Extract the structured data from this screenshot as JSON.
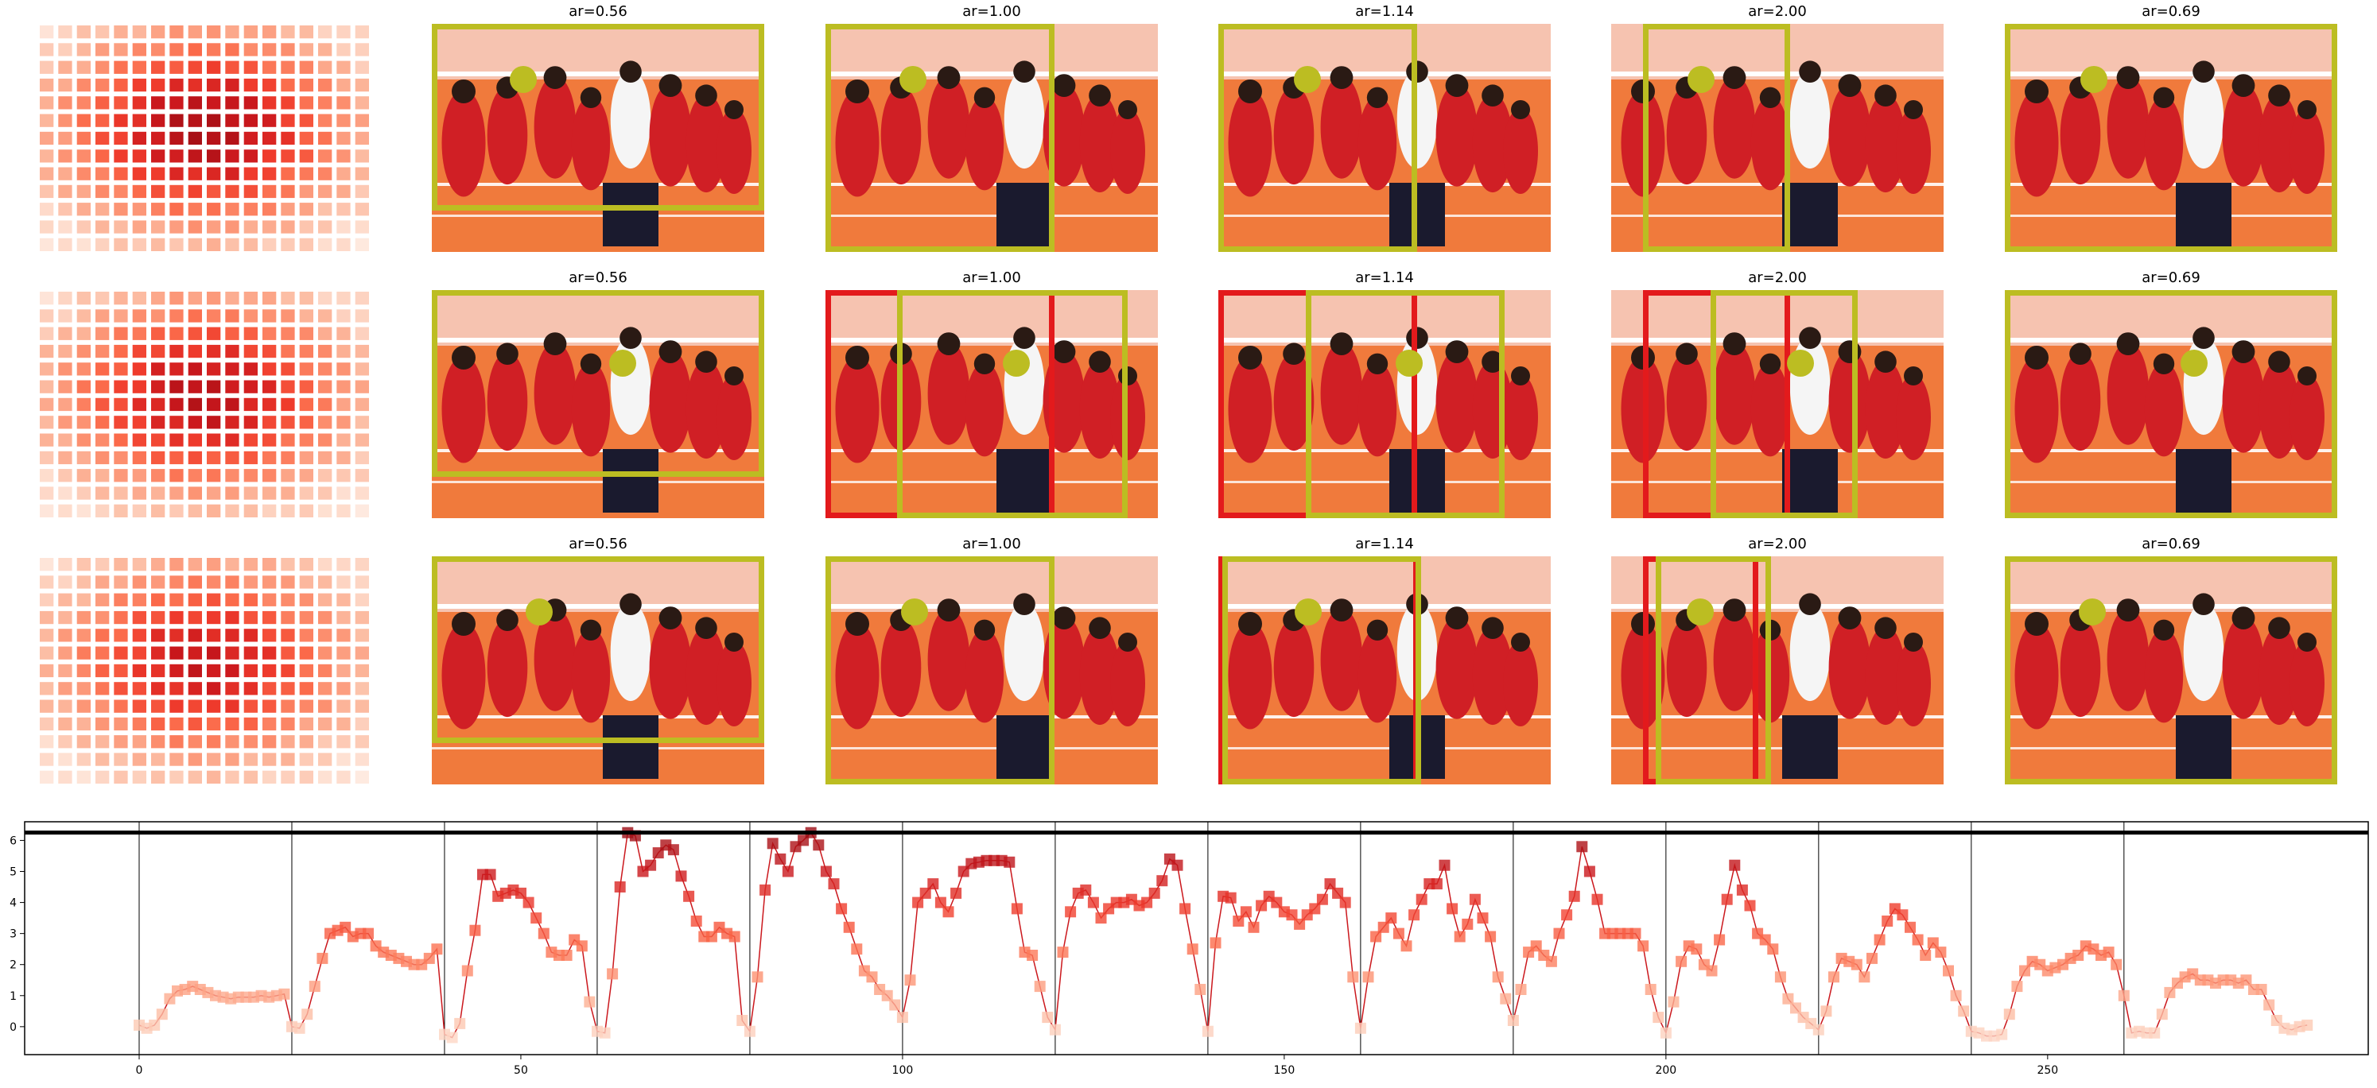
{
  "colors": {
    "box_yellow": "#bcbd22",
    "box_red": "#e31a1c",
    "heat_light": "#fee5d9",
    "heat_dark": "#a50f15",
    "line": "#cb181d"
  },
  "panels": {
    "rows": [
      {
        "cells": [
          {
            "title": "ar=0.56",
            "yellow_box": true,
            "red_box": false
          },
          {
            "title": "ar=1.00",
            "yellow_box": true,
            "red_box": false
          },
          {
            "title": "ar=1.14",
            "yellow_box": true,
            "red_box": false
          },
          {
            "title": "ar=2.00",
            "yellow_box": true,
            "red_box": false
          },
          {
            "title": "ar=0.69",
            "yellow_box": true,
            "red_box": false
          }
        ]
      },
      {
        "cells": [
          {
            "title": "ar=0.56",
            "yellow_box": true,
            "red_box": false
          },
          {
            "title": "ar=1.00",
            "yellow_box": true,
            "red_box": true
          },
          {
            "title": "ar=1.14",
            "yellow_box": true,
            "red_box": true
          },
          {
            "title": "ar=2.00",
            "yellow_box": true,
            "red_box": true
          },
          {
            "title": "ar=0.69",
            "yellow_box": true,
            "red_box": false
          }
        ]
      },
      {
        "cells": [
          {
            "title": "ar=0.56",
            "yellow_box": true,
            "red_box": false
          },
          {
            "title": "ar=1.00",
            "yellow_box": true,
            "red_box": false
          },
          {
            "title": "ar=1.14",
            "yellow_box": true,
            "red_box": true
          },
          {
            "title": "ar=2.00",
            "yellow_box": true,
            "red_box": true
          },
          {
            "title": "ar=0.69",
            "yellow_box": true,
            "red_box": false
          }
        ]
      }
    ]
  },
  "chart_data": {
    "type": "line",
    "title": "",
    "xlabel": "",
    "ylabel": "",
    "xlim": [
      -15,
      292
    ],
    "ylim": [
      -0.9,
      6.6
    ],
    "xticks": [
      0,
      50,
      100,
      150,
      200,
      250
    ],
    "yticks": [
      0,
      1,
      2,
      3,
      4,
      5,
      6
    ],
    "hline": 6.25,
    "vlines": [
      0,
      20,
      40,
      60,
      80,
      100,
      120,
      140,
      160,
      180,
      200,
      220,
      240,
      260
    ],
    "grid": false,
    "x_start": 0,
    "values": [
      0.05,
      -0.05,
      0.05,
      0.4,
      0.9,
      1.15,
      1.2,
      1.3,
      1.2,
      1.1,
      1.0,
      0.95,
      0.9,
      0.95,
      0.95,
      0.95,
      1.0,
      0.95,
      1.0,
      1.05,
      0.0,
      -0.05,
      0.4,
      1.3,
      2.2,
      3.0,
      3.1,
      3.2,
      2.9,
      3.0,
      3.0,
      2.6,
      2.4,
      2.3,
      2.2,
      2.1,
      2.0,
      2.0,
      2.2,
      2.5,
      -0.25,
      -0.35,
      0.1,
      1.8,
      3.1,
      4.9,
      4.9,
      4.2,
      4.3,
      4.4,
      4.3,
      4.0,
      3.5,
      3.0,
      2.4,
      2.3,
      2.3,
      2.8,
      2.6,
      0.8,
      -0.15,
      -0.2,
      1.7,
      4.5,
      6.25,
      6.15,
      5.0,
      5.2,
      5.6,
      5.85,
      5.7,
      4.85,
      4.2,
      3.4,
      2.9,
      2.9,
      3.2,
      3.0,
      2.9,
      0.2,
      -0.15,
      1.6,
      4.4,
      5.9,
      5.4,
      5.0,
      5.8,
      6.0,
      6.25,
      5.85,
      5.0,
      4.6,
      3.8,
      3.2,
      2.5,
      1.8,
      1.6,
      1.2,
      1.0,
      0.7,
      0.3,
      1.5,
      4.0,
      4.3,
      4.6,
      4.0,
      3.7,
      4.3,
      5.0,
      5.25,
      5.3,
      5.35,
      5.35,
      5.35,
      5.3,
      3.8,
      2.4,
      2.3,
      1.3,
      0.3,
      -0.1,
      2.4,
      3.7,
      4.3,
      4.4,
      4.0,
      3.5,
      3.8,
      4.0,
      4.0,
      4.1,
      3.9,
      4.0,
      4.3,
      4.7,
      5.4,
      5.2,
      3.8,
      2.5,
      1.2,
      -0.15,
      2.7,
      4.2,
      4.15,
      3.4,
      3.7,
      3.2,
      3.9,
      4.2,
      4.0,
      3.7,
      3.6,
      3.3,
      3.6,
      3.8,
      4.1,
      4.6,
      4.3,
      4.0,
      1.6,
      -0.05,
      1.6,
      2.9,
      3.2,
      3.5,
      3.0,
      2.6,
      3.6,
      4.1,
      4.6,
      4.6,
      5.2,
      3.8,
      2.9,
      3.3,
      4.1,
      3.5,
      2.9,
      1.6,
      0.9,
      0.2,
      1.2,
      2.4,
      2.6,
      2.3,
      2.1,
      3.0,
      3.6,
      4.2,
      5.8,
      5.0,
      4.1,
      3.0,
      3.0,
      3.0,
      3.0,
      3.0,
      2.6,
      1.2,
      0.3,
      -0.2,
      0.8,
      2.1,
      2.6,
      2.5,
      2.0,
      1.8,
      2.8,
      4.1,
      5.2,
      4.4,
      3.9,
      3.0,
      2.8,
      2.5,
      1.6,
      0.9,
      0.6,
      0.3,
      0.1,
      -0.1,
      0.5,
      1.6,
      2.2,
      2.1,
      2.0,
      1.6,
      2.2,
      2.8,
      3.4,
      3.8,
      3.6,
      3.2,
      2.8,
      2.3,
      2.7,
      2.4,
      1.8,
      1.0,
      0.5,
      -0.15,
      -0.2,
      -0.3,
      -0.3,
      -0.25,
      0.4,
      1.3,
      1.8,
      2.1,
      2.0,
      1.8,
      1.9,
      2.0,
      2.2,
      2.3,
      2.6,
      2.5,
      2.3,
      2.4,
      2.0,
      1.0,
      -0.2,
      -0.15,
      -0.2,
      -0.2,
      0.4,
      1.1,
      1.4,
      1.6,
      1.7,
      1.5,
      1.5,
      1.4,
      1.5,
      1.5,
      1.4,
      1.5,
      1.2,
      1.2,
      0.7,
      0.2,
      -0.05,
      -0.1,
      0.0,
      0.05
    ]
  }
}
